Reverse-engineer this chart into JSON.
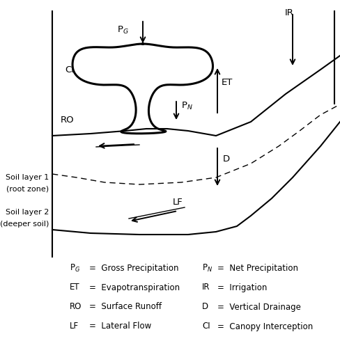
{
  "bg_color": "#ffffff",
  "line_color": "#000000",
  "fig_width": 4.88,
  "fig_height": 5.0,
  "legend_left": [
    [
      "P",
      "G",
      "=  Gross Precipitation"
    ],
    [
      "ET",
      "",
      " =  Evapotranspiration"
    ],
    [
      "RO",
      "",
      " =  Surface Runoff"
    ],
    [
      "LF",
      "",
      " =  Lateral Flow"
    ]
  ],
  "legend_right": [
    [
      "P",
      "N",
      "=  Net Precipitation"
    ],
    [
      "IR",
      "",
      " =  Irrigation"
    ],
    [
      "D",
      "",
      " =  Vertical Drainage"
    ],
    [
      "CI",
      "",
      " =  Canopy Interception"
    ]
  ]
}
